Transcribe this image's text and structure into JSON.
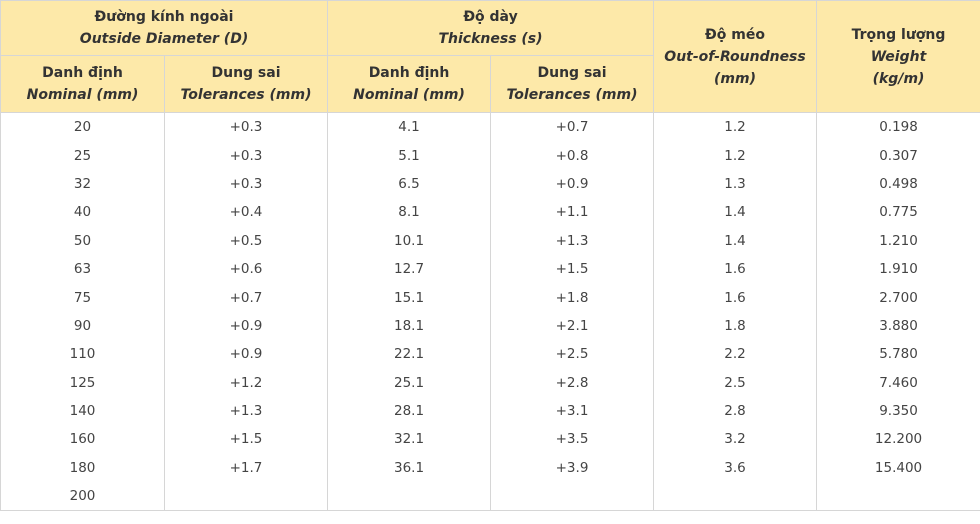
{
  "header": {
    "diameter": {
      "vi": "Đường kính ngoài",
      "en": "Outside Diameter (D)"
    },
    "thickness": {
      "vi": "Độ dày",
      "en": "Thickness (s)"
    },
    "roundness": {
      "vi": "Độ méo",
      "en": "Out-of-Roundness",
      "unit": "(mm)"
    },
    "weight": {
      "vi": "Trọng lượng",
      "en": "Weight",
      "unit": "(kg/m)"
    },
    "sub": [
      {
        "vi": "Danh định",
        "en": "Nominal (mm)"
      },
      {
        "vi": "Dung sai",
        "en": "Tolerances (mm)"
      },
      {
        "vi": "Danh định",
        "en": "Nominal (mm)"
      },
      {
        "vi": "Dung sai",
        "en": "Tolerances (mm)"
      }
    ]
  },
  "table": {
    "rows": [
      [
        "20",
        "+0.3",
        "4.1",
        "+0.7",
        "1.2",
        "0.198"
      ],
      [
        "25",
        "+0.3",
        "5.1",
        "+0.8",
        "1.2",
        "0.307"
      ],
      [
        "32",
        "+0.3",
        "6.5",
        "+0.9",
        "1.3",
        "0.498"
      ],
      [
        "40",
        "+0.4",
        "8.1",
        "+1.1",
        "1.4",
        "0.775"
      ],
      [
        "50",
        "+0.5",
        "10.1",
        "+1.3",
        "1.4",
        "1.210"
      ],
      [
        "63",
        "+0.6",
        "12.7",
        "+1.5",
        "1.6",
        "1.910"
      ],
      [
        "75",
        "+0.7",
        "15.1",
        "+1.8",
        "1.6",
        "2.700"
      ],
      [
        "90",
        "+0.9",
        "18.1",
        "+2.1",
        "1.8",
        "3.880"
      ],
      [
        "110",
        "+0.9",
        "22.1",
        "+2.5",
        "2.2",
        "5.780"
      ],
      [
        "125",
        "+1.2",
        "25.1",
        "+2.8",
        "2.5",
        "7.460"
      ],
      [
        "140",
        "+1.3",
        "28.1",
        "+3.1",
        "2.8",
        "9.350"
      ],
      [
        "160",
        "+1.5",
        "32.1",
        "+3.5",
        "3.2",
        "12.200"
      ],
      [
        "180",
        "+1.7",
        "36.1",
        "+3.9",
        "3.6",
        "15.400"
      ],
      [
        "200"
      ]
    ]
  }
}
